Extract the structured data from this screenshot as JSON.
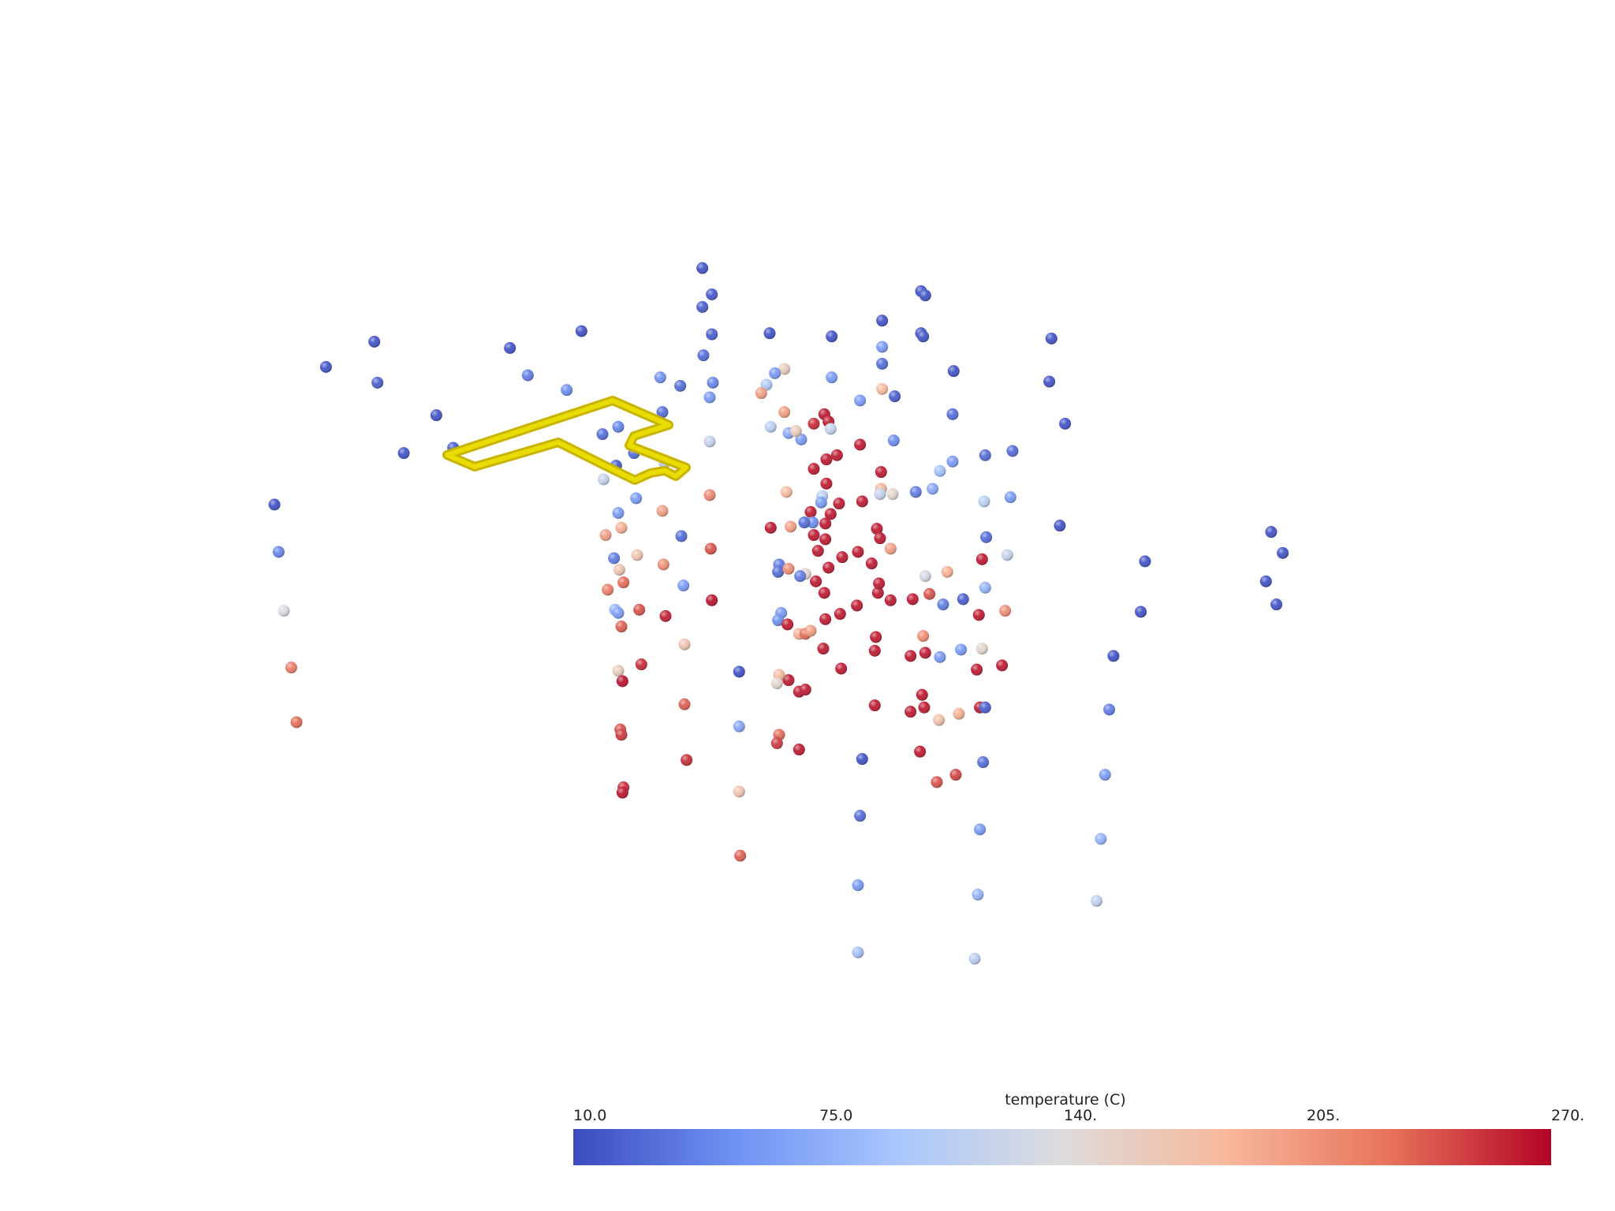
{
  "colormap": {
    "name": "coolwarm",
    "stops": [
      "#3b4cc0",
      "#6f92f3",
      "#aac7fd",
      "#dddcdc",
      "#f7b89c",
      "#e7745b",
      "#b40426"
    ]
  },
  "scalar_bar": {
    "title": "temperature (C)",
    "ticks": [
      "10.0",
      "75.0",
      "140.",
      "205.",
      "270."
    ],
    "range": [
      10,
      270
    ]
  },
  "outline": {
    "color": "#e0d000",
    "edge_color": "#c8b400"
  },
  "points": [
    [
      668,
      255,
      14
    ],
    [
      677,
      280,
      18
    ],
    [
      668,
      292,
      20
    ],
    [
      677,
      318,
      22
    ],
    [
      669,
      338,
      30
    ],
    [
      678,
      364,
      45
    ],
    [
      675,
      378,
      60
    ],
    [
      675,
      420,
      120
    ],
    [
      675,
      471,
      215
    ],
    [
      676,
      522,
      240
    ],
    [
      677,
      571,
      265
    ],
    [
      876,
      277,
      14
    ],
    [
      880,
      281,
      14
    ],
    [
      876,
      317,
      14
    ],
    [
      878,
      320,
      14
    ],
    [
      839,
      305,
      14
    ],
    [
      839,
      330,
      60
    ],
    [
      839,
      346,
      30
    ],
    [
      851,
      377,
      20
    ],
    [
      839,
      370,
      180
    ],
    [
      850,
      419,
      50
    ],
    [
      838,
      465,
      185
    ],
    [
      849,
      470,
      150
    ],
    [
      837,
      470,
      120
    ],
    [
      1000,
      322,
      14
    ],
    [
      998,
      363,
      14
    ],
    [
      1013,
      403,
      14
    ],
    [
      907,
      353,
      14
    ],
    [
      906,
      394,
      30
    ],
    [
      937,
      433,
      30
    ],
    [
      963,
      429,
      30
    ],
    [
      906,
      439,
      60
    ],
    [
      894,
      448,
      90
    ],
    [
      871,
      468,
      40
    ],
    [
      887,
      465,
      70
    ],
    [
      936,
      477,
      110
    ],
    [
      961,
      473,
      60
    ],
    [
      1008,
      500,
      14
    ],
    [
      1089,
      534,
      14
    ],
    [
      1085,
      582,
      14
    ],
    [
      1059,
      624,
      14
    ],
    [
      1055,
      675,
      40
    ],
    [
      1051,
      737,
      60
    ],
    [
      1047,
      798,
      80
    ],
    [
      1043,
      857,
      115
    ],
    [
      1209,
      506,
      14
    ],
    [
      1220,
      526,
      14
    ],
    [
      1204,
      553,
      14
    ],
    [
      1214,
      575,
      14
    ],
    [
      310,
      349,
      14
    ],
    [
      356,
      325,
      14
    ],
    [
      359,
      364,
      22
    ],
    [
      384,
      431,
      14
    ],
    [
      415,
      395,
      14
    ],
    [
      431,
      426,
      20
    ],
    [
      261,
      480,
      14
    ],
    [
      265,
      525,
      45
    ],
    [
      270,
      581,
      135
    ],
    [
      277,
      635,
      220
    ],
    [
      282,
      687,
      230
    ],
    [
      485,
      331,
      14
    ],
    [
      502,
      357,
      40
    ],
    [
      553,
      315,
      14
    ],
    [
      539,
      371,
      50
    ],
    [
      573,
      413,
      30
    ],
    [
      588,
      406,
      45
    ],
    [
      630,
      392,
      30
    ],
    [
      628,
      359,
      55
    ],
    [
      647,
      367,
      30
    ],
    [
      586,
      443,
      20
    ],
    [
      603,
      431,
      30
    ],
    [
      574,
      456,
      120
    ],
    [
      588,
      488,
      60
    ],
    [
      576,
      509,
      200
    ],
    [
      591,
      502,
      190
    ],
    [
      648,
      510,
      30
    ],
    [
      631,
      537,
      210
    ],
    [
      650,
      557,
      60
    ],
    [
      630,
      486,
      200
    ],
    [
      584,
      531,
      40
    ],
    [
      589,
      542,
      170
    ],
    [
      606,
      528,
      170
    ],
    [
      593,
      554,
      230
    ],
    [
      578,
      561,
      220
    ],
    [
      585,
      580,
      80
    ],
    [
      588,
      583,
      60
    ],
    [
      608,
      580,
      240
    ],
    [
      605,
      474,
      60
    ],
    [
      632,
      440,
      110
    ],
    [
      591,
      596,
      235
    ],
    [
      633,
      586,
      260
    ],
    [
      651,
      613,
      170
    ],
    [
      588,
      638,
      160
    ],
    [
      592,
      648,
      265
    ],
    [
      610,
      632,
      255
    ],
    [
      651,
      670,
      235
    ],
    [
      590,
      694,
      240
    ],
    [
      591,
      699,
      250
    ],
    [
      653,
      723,
      255
    ],
    [
      593,
      749,
      255
    ],
    [
      592,
      754,
      265
    ],
    [
      732,
      317,
      14
    ],
    [
      746,
      351,
      160
    ],
    [
      737,
      355,
      60
    ],
    [
      729,
      366,
      100
    ],
    [
      724,
      374,
      200
    ],
    [
      791,
      320,
      14
    ],
    [
      791,
      359,
      60
    ],
    [
      818,
      381,
      60
    ],
    [
      746,
      392,
      200
    ],
    [
      733,
      406,
      110
    ],
    [
      750,
      412,
      70
    ],
    [
      762,
      418,
      60
    ],
    [
      757,
      410,
      160
    ],
    [
      774,
      403,
      255
    ],
    [
      784,
      394,
      262
    ],
    [
      788,
      401,
      262
    ],
    [
      790,
      408,
      120
    ],
    [
      796,
      433,
      262
    ],
    [
      786,
      437,
      262
    ],
    [
      774,
      446,
      262
    ],
    [
      786,
      460,
      262
    ],
    [
      782,
      472,
      110
    ],
    [
      798,
      479,
      262
    ],
    [
      818,
      423,
      262
    ],
    [
      838,
      449,
      262
    ],
    [
      820,
      477,
      262
    ],
    [
      834,
      503,
      262
    ],
    [
      837,
      512,
      262
    ],
    [
      847,
      522,
      200
    ],
    [
      816,
      525,
      262
    ],
    [
      801,
      530,
      262
    ],
    [
      778,
      524,
      262
    ],
    [
      788,
      540,
      262
    ],
    [
      776,
      553,
      262
    ],
    [
      784,
      564,
      262
    ],
    [
      785,
      589,
      262
    ],
    [
      783,
      617,
      262
    ],
    [
      799,
      584,
      262
    ],
    [
      815,
      576,
      262
    ],
    [
      835,
      564,
      262
    ],
    [
      836,
      555,
      262
    ],
    [
      829,
      536,
      262
    ],
    [
      847,
      571,
      262
    ],
    [
      868,
      570,
      262
    ],
    [
      884,
      565,
      240
    ],
    [
      901,
      544,
      190
    ],
    [
      880,
      548,
      130
    ],
    [
      897,
      575,
      40
    ],
    [
      916,
      570,
      20
    ],
    [
      931,
      585,
      262
    ],
    [
      937,
      559,
      80
    ],
    [
      958,
      528,
      120
    ],
    [
      934,
      532,
      262
    ],
    [
      938,
      511,
      30
    ],
    [
      956,
      581,
      210
    ],
    [
      748,
      468,
      180
    ],
    [
      771,
      487,
      262
    ],
    [
      781,
      478,
      60
    ],
    [
      790,
      489,
      262
    ],
    [
      785,
      498,
      262
    ],
    [
      785,
      513,
      262
    ],
    [
      774,
      509,
      262
    ],
    [
      773,
      497,
      50
    ],
    [
      765,
      497,
      30
    ],
    [
      733,
      502,
      262
    ],
    [
      752,
      501,
      200
    ],
    [
      741,
      537,
      40
    ],
    [
      740,
      544,
      30
    ],
    [
      766,
      546,
      150
    ],
    [
      761,
      548,
      40
    ],
    [
      750,
      541,
      210
    ],
    [
      743,
      583,
      60
    ],
    [
      740,
      590,
      50
    ],
    [
      749,
      594,
      262
    ],
    [
      760,
      603,
      190
    ],
    [
      766,
      603,
      230
    ],
    [
      771,
      600,
      200
    ],
    [
      800,
      636,
      262
    ],
    [
      833,
      606,
      262
    ],
    [
      832,
      619,
      262
    ],
    [
      866,
      624,
      262
    ],
    [
      880,
      621,
      262
    ],
    [
      878,
      605,
      210
    ],
    [
      894,
      625,
      60
    ],
    [
      914,
      618,
      60
    ],
    [
      934,
      617,
      150
    ],
    [
      953,
      633,
      262
    ],
    [
      929,
      637,
      262
    ],
    [
      877,
      661,
      262
    ],
    [
      879,
      673,
      262
    ],
    [
      866,
      677,
      262
    ],
    [
      893,
      685,
      175
    ],
    [
      912,
      679,
      190
    ],
    [
      932,
      673,
      262
    ],
    [
      937,
      673,
      20
    ],
    [
      832,
      671,
      262
    ],
    [
      760,
      658,
      262
    ],
    [
      766,
      656,
      262
    ],
    [
      750,
      647,
      262
    ],
    [
      741,
      642,
      180
    ],
    [
      739,
      650,
      150
    ],
    [
      703,
      639,
      14
    ],
    [
      703,
      691,
      70
    ],
    [
      741,
      699,
      230
    ],
    [
      739,
      707,
      250
    ],
    [
      760,
      713,
      262
    ],
    [
      703,
      753,
      170
    ],
    [
      704,
      814,
      235
    ],
    [
      820,
      722,
      14
    ],
    [
      818,
      776,
      30
    ],
    [
      816,
      842,
      60
    ],
    [
      816,
      906,
      90
    ],
    [
      875,
      715,
      262
    ],
    [
      891,
      744,
      240
    ],
    [
      909,
      737,
      245
    ],
    [
      935,
      725,
      30
    ],
    [
      932,
      789,
      60
    ],
    [
      930,
      851,
      80
    ],
    [
      927,
      912,
      110
    ]
  ]
}
